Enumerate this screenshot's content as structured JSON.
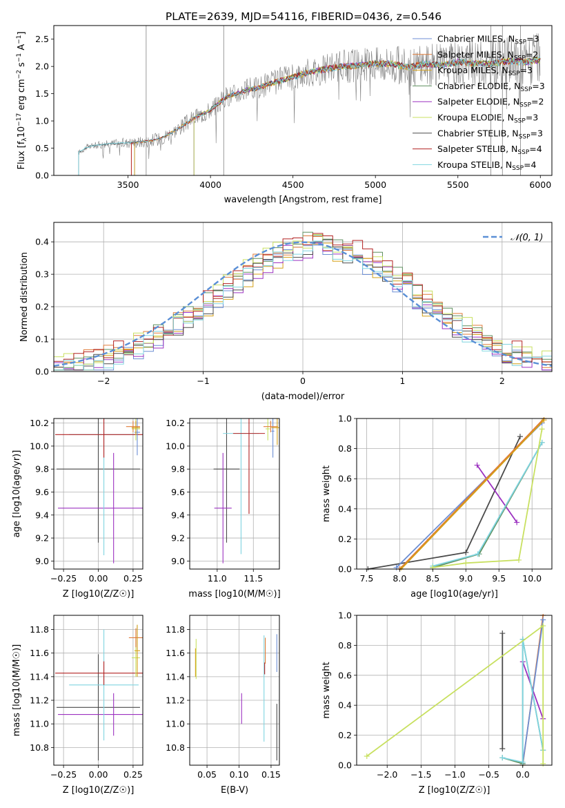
{
  "figure": {
    "title": "PLATE=2639, MJD=54116, FIBERID=0436, z=0.546"
  },
  "colors": {
    "Chabrier MILES": "#6c8ed4",
    "Salpeter MILES": "#e07b39",
    "Kroupa MILES": "#d4a017",
    "Chabrier ELODIE": "#5e8f5e",
    "Salpeter ELODIE": "#9b30c0",
    "Kroupa ELODIE": "#c8e060",
    "Chabrier STELIB": "#4a4a4a",
    "Salpeter STELIB": "#b22222",
    "Kroupa STELIB": "#7fd4e0",
    "data": "#808080",
    "gaussian": "#5a8fd6"
  },
  "chart_data": [
    {
      "id": "spectrum",
      "type": "line",
      "title": "PLATE=2639, MJD=54116, FIBERID=0436, z=0.546",
      "xlabel": "wavelength [Angstrom, rest frame]",
      "ylabel": "Flux [f_λ 10^-17 erg cm^-2 s^-1 A^-1]",
      "xlim": [
        3050,
        6070
      ],
      "ylim": [
        0,
        2.75
      ],
      "xticks": [
        "3500",
        "4000",
        "4500",
        "5000",
        "5500",
        "6000"
      ],
      "yticks": [
        "0.0",
        "0.5",
        "1.0",
        "1.5",
        "2.0",
        "2.5"
      ],
      "grid": false,
      "legend_position": "top-right",
      "legend": [
        {
          "label": "Chabrier MILES, N",
          "sub": "SSP",
          "suffix": "=3"
        },
        {
          "label": "Salpeter MILES, N",
          "sub": "SSP",
          "suffix": "=2"
        },
        {
          "label": "Kroupa MILES, N",
          "sub": "SSP",
          "suffix": "=3"
        },
        {
          "label": "Chabrier ELODIE, N",
          "sub": "SSP",
          "suffix": "=3"
        },
        {
          "label": "Salpeter ELODIE, N",
          "sub": "SSP",
          "suffix": "=2"
        },
        {
          "label": "Kroupa ELODIE, N",
          "sub": "SSP",
          "suffix": "=3"
        },
        {
          "label": "Chabrier STELIB, N",
          "sub": "SSP",
          "suffix": "=3"
        },
        {
          "label": "Salpeter STELIB, N",
          "sub": "SSP",
          "suffix": "=4"
        },
        {
          "label": "Kroupa STELIB, N",
          "sub": "SSP",
          "suffix": "=4"
        }
      ],
      "continuum": [
        [
          3200,
          0.42
        ],
        [
          3250,
          0.52
        ],
        [
          3300,
          0.55
        ],
        [
          3400,
          0.58
        ],
        [
          3500,
          0.6
        ],
        [
          3600,
          0.62
        ],
        [
          3700,
          0.68
        ],
        [
          3800,
          0.85
        ],
        [
          3900,
          1.05
        ],
        [
          4000,
          1.2
        ],
        [
          4100,
          1.45
        ],
        [
          4200,
          1.55
        ],
        [
          4300,
          1.62
        ],
        [
          4400,
          1.72
        ],
        [
          4500,
          1.8
        ],
        [
          4600,
          1.9
        ],
        [
          4700,
          1.95
        ],
        [
          4800,
          2.0
        ],
        [
          4900,
          2.02
        ],
        [
          5000,
          2.05
        ],
        [
          5100,
          2.05
        ],
        [
          5200,
          1.98
        ],
        [
          5300,
          2.05
        ],
        [
          5400,
          2.02
        ],
        [
          5500,
          2.08
        ],
        [
          5600,
          2.05
        ],
        [
          5700,
          2.05
        ],
        [
          5800,
          2.1
        ],
        [
          5900,
          2.08
        ],
        [
          6000,
          2.12
        ]
      ],
      "model_ranges": {
        "Chabrier MILES": [
          3540,
          6000
        ],
        "Salpeter MILES": [
          3520,
          6000
        ],
        "Kroupa MILES": [
          3540,
          6000
        ],
        "Chabrier ELODIE": [
          3900,
          6000
        ],
        "Salpeter ELODIE": [
          3900,
          6000
        ],
        "Kroupa ELODIE": [
          3900,
          6000
        ],
        "Chabrier STELIB": [
          3200,
          6000
        ],
        "Salpeter STELIB": [
          3520,
          6000
        ],
        "Kroupa STELIB": [
          3200,
          6000
        ]
      },
      "data_range": [
        3200,
        6000
      ],
      "spikes": [
        [
          3610,
          2.75
        ],
        [
          4080,
          2.75
        ],
        [
          5700,
          2.75
        ],
        [
          5770,
          2.75
        ],
        [
          5880,
          2.75
        ]
      ]
    },
    {
      "id": "residuals",
      "type": "histogram",
      "xlabel": "(data-model)/error",
      "ylabel": "Normed distribution",
      "xlim": [
        -2.5,
        2.5
      ],
      "ylim": [
        0,
        0.46
      ],
      "xticks": [
        "−2",
        "−1",
        "0",
        "1",
        "2"
      ],
      "yticks": [
        "0.0",
        "0.1",
        "0.2",
        "0.3",
        "0.4"
      ],
      "grid": true,
      "legend_position": "top-right",
      "legend": [
        {
          "label": "𝒩(0, 1)"
        }
      ],
      "bin_width": 0.1,
      "gaussian": {
        "mean": 0,
        "sigma": 1
      }
    },
    {
      "id": "age-vs-Z",
      "type": "scatter",
      "xlabel": "Z [log10(Z/Z☉)]",
      "ylabel": "age  [log10(age/yr)]",
      "xlim": [
        -0.32,
        0.32
      ],
      "ylim": [
        8.93,
        10.24
      ],
      "xticks": [
        "−0.25",
        "0.00",
        "0.25"
      ],
      "xtick_values": [
        -0.25,
        0,
        0.25
      ],
      "yticks": [
        "9.0",
        "9.2",
        "9.4",
        "9.6",
        "9.8",
        "10.0",
        "10.2"
      ],
      "ytick_values": [
        9.0,
        9.2,
        9.4,
        9.6,
        9.8,
        10.0,
        10.2
      ],
      "grid": true,
      "points": [
        {
          "model": "Chabrier STELIB",
          "x": 0.0,
          "y": 9.8,
          "xerr": 0.3,
          "yerr": 0.64
        },
        {
          "model": "Salpeter ELODIE",
          "x": 0.11,
          "y": 9.46,
          "xerr": 0.4,
          "yerr": 0.48
        },
        {
          "model": "Kroupa STELIB",
          "x": 0.04,
          "y": 10.1,
          "xerr": 0.25,
          "yerr": 1.05
        },
        {
          "model": "Salpeter STELIB",
          "x": 0.04,
          "y": 10.1,
          "xerr": 0.35,
          "yerr": 0.2
        },
        {
          "model": "Chabrier MILES",
          "x": 0.28,
          "y": 10.12,
          "xerr": 0.02,
          "yerr": 0.2
        },
        {
          "model": "Kroupa ELODIE",
          "x": 0.27,
          "y": 10.15,
          "xerr": 0.03,
          "yerr": 0.1
        },
        {
          "model": "Salpeter MILES",
          "x": 0.25,
          "y": 10.17,
          "xerr": 0.05,
          "yerr": 0.05
        },
        {
          "model": "Kroupa MILES",
          "x": 0.27,
          "y": 10.16,
          "xerr": 0.03,
          "yerr": 0.06
        }
      ]
    },
    {
      "id": "age-vs-mass",
      "type": "scatter",
      "xlabel": "mass [log10(M/M☉)]",
      "ylabel": "",
      "xlim": [
        10.62,
        11.86
      ],
      "ylim": [
        8.93,
        10.24
      ],
      "xticks": [
        "11.0",
        "11.5"
      ],
      "xtick_values": [
        11.0,
        11.5
      ],
      "yticks": [
        "9.0",
        "9.2",
        "9.4",
        "9.6",
        "9.8",
        "10.0",
        "10.2"
      ],
      "ytick_values": [
        9.0,
        9.2,
        9.4,
        9.6,
        9.8,
        10.0,
        10.2
      ],
      "grid": true,
      "points": [
        {
          "model": "Chabrier STELIB",
          "x": 11.13,
          "y": 9.8,
          "xerr": 0.18,
          "yerr": 0.64
        },
        {
          "model": "Salpeter ELODIE",
          "x": 11.08,
          "y": 9.46,
          "xerr": 0.12,
          "yerr": 0.48
        },
        {
          "model": "Kroupa STELIB",
          "x": 11.33,
          "y": 10.11,
          "xerr": 0.25,
          "yerr": 1.05
        },
        {
          "model": "Salpeter STELIB",
          "x": 11.44,
          "y": 10.11,
          "xerr": 0.22,
          "yerr": 0.7
        },
        {
          "model": "Chabrier MILES",
          "x": 11.77,
          "y": 10.13,
          "xerr": 0.02,
          "yerr": 0.23
        },
        {
          "model": "Kroupa ELODIE",
          "x": 11.7,
          "y": 10.15,
          "xerr": 0.03,
          "yerr": 0.1
        },
        {
          "model": "Salpeter MILES",
          "x": 11.74,
          "y": 10.17,
          "xerr": 0.1,
          "yerr": 0.05
        },
        {
          "model": "Kroupa MILES",
          "x": 11.83,
          "y": 10.16,
          "xerr": 0.08,
          "yerr": 0.15
        }
      ]
    },
    {
      "id": "weight-vs-age",
      "type": "line",
      "xlabel": "age  [log10(age/yr)]",
      "ylabel": "mass weight",
      "xlim": [
        7.35,
        10.3
      ],
      "ylim": [
        0,
        1.0
      ],
      "xticks": [
        "7.5",
        "8.0",
        "8.5",
        "9.0",
        "9.5",
        "10.0"
      ],
      "xtick_values": [
        7.5,
        8.0,
        8.5,
        9.0,
        9.5,
        10.0
      ],
      "yticks": [
        "0.0",
        "0.2",
        "0.4",
        "0.6",
        "0.8",
        "1.0"
      ],
      "ytick_values": [
        0,
        0.2,
        0.4,
        0.6,
        0.8,
        1.0
      ],
      "grid": true,
      "series": [
        {
          "model": "Chabrier STELIB",
          "points": [
            [
              7.52,
              0.0
            ],
            [
              9.0,
              0.11
            ],
            [
              9.82,
              0.88
            ]
          ]
        },
        {
          "model": "Salpeter ELODIE",
          "points": [
            [
              9.17,
              0.69
            ],
            [
              9.77,
              0.31
            ]
          ]
        },
        {
          "model": "Chabrier MILES",
          "points": [
            [
              7.95,
              0.01
            ],
            [
              10.15,
              0.97
            ]
          ]
        },
        {
          "model": "Salpeter MILES",
          "points": [
            [
              8.0,
              0.0
            ],
            [
              10.18,
              1.0
            ]
          ]
        },
        {
          "model": "Kroupa MILES",
          "points": [
            [
              8.02,
              0.0
            ],
            [
              10.18,
              0.99
            ]
          ]
        },
        {
          "model": "Chabrier ELODIE",
          "points": [
            [
              8.5,
              0.01
            ],
            [
              9.2,
              0.1
            ],
            [
              10.15,
              0.84
            ]
          ]
        },
        {
          "model": "Kroupa STELIB",
          "points": [
            [
              8.5,
              0.02
            ],
            [
              9.18,
              0.1
            ],
            [
              10.15,
              0.84
            ]
          ]
        },
        {
          "model": "Kroupa ELODIE",
          "points": [
            [
              8.5,
              0.01
            ],
            [
              9.0,
              0.04
            ],
            [
              9.8,
              0.06
            ],
            [
              10.15,
              0.93
            ]
          ]
        }
      ]
    },
    {
      "id": "mass-vs-Z",
      "type": "scatter",
      "xlabel": "Z [log10(Z/Z☉)]",
      "ylabel": "mass [log10(M/M☉)]",
      "xlim": [
        -0.32,
        0.32
      ],
      "ylim": [
        10.65,
        11.92
      ],
      "xticks": [
        "−0.25",
        "0.00",
        "0.25"
      ],
      "xtick_values": [
        -0.25,
        0,
        0.25
      ],
      "yticks": [
        "10.8",
        "11.0",
        "11.2",
        "11.4",
        "11.6",
        "11.8"
      ],
      "ytick_values": [
        10.8,
        11.0,
        11.2,
        11.4,
        11.6,
        11.8
      ],
      "grid": true,
      "points": [
        {
          "model": "Chabrier STELIB",
          "x": 0.0,
          "y": 11.14,
          "xerr": 0.3,
          "yerr": 0.45
        },
        {
          "model": "Salpeter ELODIE",
          "x": 0.11,
          "y": 11.08,
          "xerr": 0.4,
          "yerr": 0.18
        },
        {
          "model": "Kroupa STELIB",
          "x": 0.04,
          "y": 11.33,
          "xerr": 0.25,
          "yerr": 0.47
        },
        {
          "model": "Salpeter STELIB",
          "x": 0.04,
          "y": 11.43,
          "xerr": 0.35,
          "yerr": 0.1
        },
        {
          "model": "Chabrier MILES",
          "x": 0.28,
          "y": 11.73,
          "xerr": 0.02,
          "yerr": 0.1
        },
        {
          "model": "Kroupa ELODIE",
          "x": 0.27,
          "y": 11.56,
          "xerr": 0.03,
          "yerr": 0.16
        },
        {
          "model": "Salpeter MILES",
          "x": 0.27,
          "y": 11.73,
          "xerr": 0.05,
          "yerr": 0.08
        },
        {
          "model": "Kroupa MILES",
          "x": 0.28,
          "y": 11.62,
          "xerr": 0.02,
          "yerr": 0.22
        }
      ]
    },
    {
      "id": "mass-vs-EBV",
      "type": "scatter",
      "xlabel": "E(B-V)",
      "ylabel": "",
      "xlim": [
        0.023,
        0.163
      ],
      "ylim": [
        10.65,
        11.92
      ],
      "xticks": [
        "0.05",
        "0.10",
        "0.15"
      ],
      "xtick_values": [
        0.05,
        0.1,
        0.15
      ],
      "yticks": [
        "10.8",
        "11.0",
        "11.2",
        "11.4",
        "11.6",
        "11.8"
      ],
      "ytick_values": [
        10.8,
        11.0,
        11.2,
        11.4,
        11.6,
        11.8
      ],
      "grid": true,
      "points": [
        {
          "model": "Chabrier STELIB",
          "x": 0.159,
          "y": 10.93,
          "yerr": 0.24
        },
        {
          "model": "Salpeter ELODIE",
          "x": 0.104,
          "y": 11.13,
          "yerr": 0.13
        },
        {
          "model": "Kroupa STELIB",
          "x": 0.139,
          "y": 11.3,
          "yerr": 0.45
        },
        {
          "model": "Salpeter STELIB",
          "x": 0.14,
          "y": 11.47,
          "yerr": 0.05
        },
        {
          "model": "Chabrier MILES",
          "x": 0.159,
          "y": 11.6,
          "yerr": 0.16
        },
        {
          "model": "Kroupa ELODIE",
          "x": 0.033,
          "y": 11.55,
          "yerr": 0.17
        },
        {
          "model": "Salpeter MILES",
          "x": 0.141,
          "y": 11.62,
          "yerr": 0.11
        },
        {
          "model": "Kroupa MILES",
          "x": 0.032,
          "y": 11.52,
          "yerr": 0.12
        }
      ]
    },
    {
      "id": "weight-vs-Z",
      "type": "line",
      "xlabel": "Z [log10(Z/Z☉)]",
      "ylabel": "mass weight",
      "xlim": [
        -2.45,
        0.43
      ],
      "ylim": [
        0,
        1.0
      ],
      "xticks": [
        "−2.0",
        "−1.5",
        "−1.0",
        "−0.5",
        "0.0"
      ],
      "xtick_values": [
        -2.0,
        -1.5,
        -1.0,
        -0.5,
        0.0
      ],
      "yticks": [
        "0.0",
        "0.2",
        "0.4",
        "0.6",
        "0.8",
        "1.0"
      ],
      "ytick_values": [
        0,
        0.2,
        0.4,
        0.6,
        0.8,
        1.0
      ],
      "grid": true,
      "series": [
        {
          "model": "Chabrier STELIB",
          "points": [
            [
              -0.3,
              0.11
            ],
            [
              -0.3,
              0.88
            ]
          ]
        },
        {
          "model": "Salpeter ELODIE",
          "points": [
            [
              0.0,
              0.69
            ],
            [
              0.3,
              0.31
            ]
          ]
        },
        {
          "model": "Salpeter MILES",
          "points": [
            [
              0.0,
              0.0
            ],
            [
              0.3,
              1.0
            ]
          ]
        },
        {
          "model": "Chabrier MILES",
          "points": [
            [
              0.0,
              0.01
            ],
            [
              0.3,
              0.97
            ]
          ]
        },
        {
          "model": "Chabrier ELODIE",
          "points": [
            [
              -0.3,
              0.05
            ],
            [
              0.0,
              0.01
            ],
            [
              0.0,
              0.84
            ],
            [
              0.3,
              0.1
            ]
          ]
        },
        {
          "model": "Kroupa STELIB",
          "points": [
            [
              -0.3,
              0.05
            ],
            [
              0.0,
              0.02
            ],
            [
              0.0,
              0.84
            ],
            [
              0.3,
              0.1
            ]
          ]
        },
        {
          "model": "Kroupa ELODIE",
          "points": [
            [
              -2.3,
              0.06
            ],
            [
              0.3,
              0.93
            ],
            [
              0.3,
              0.01
            ]
          ]
        }
      ]
    }
  ]
}
